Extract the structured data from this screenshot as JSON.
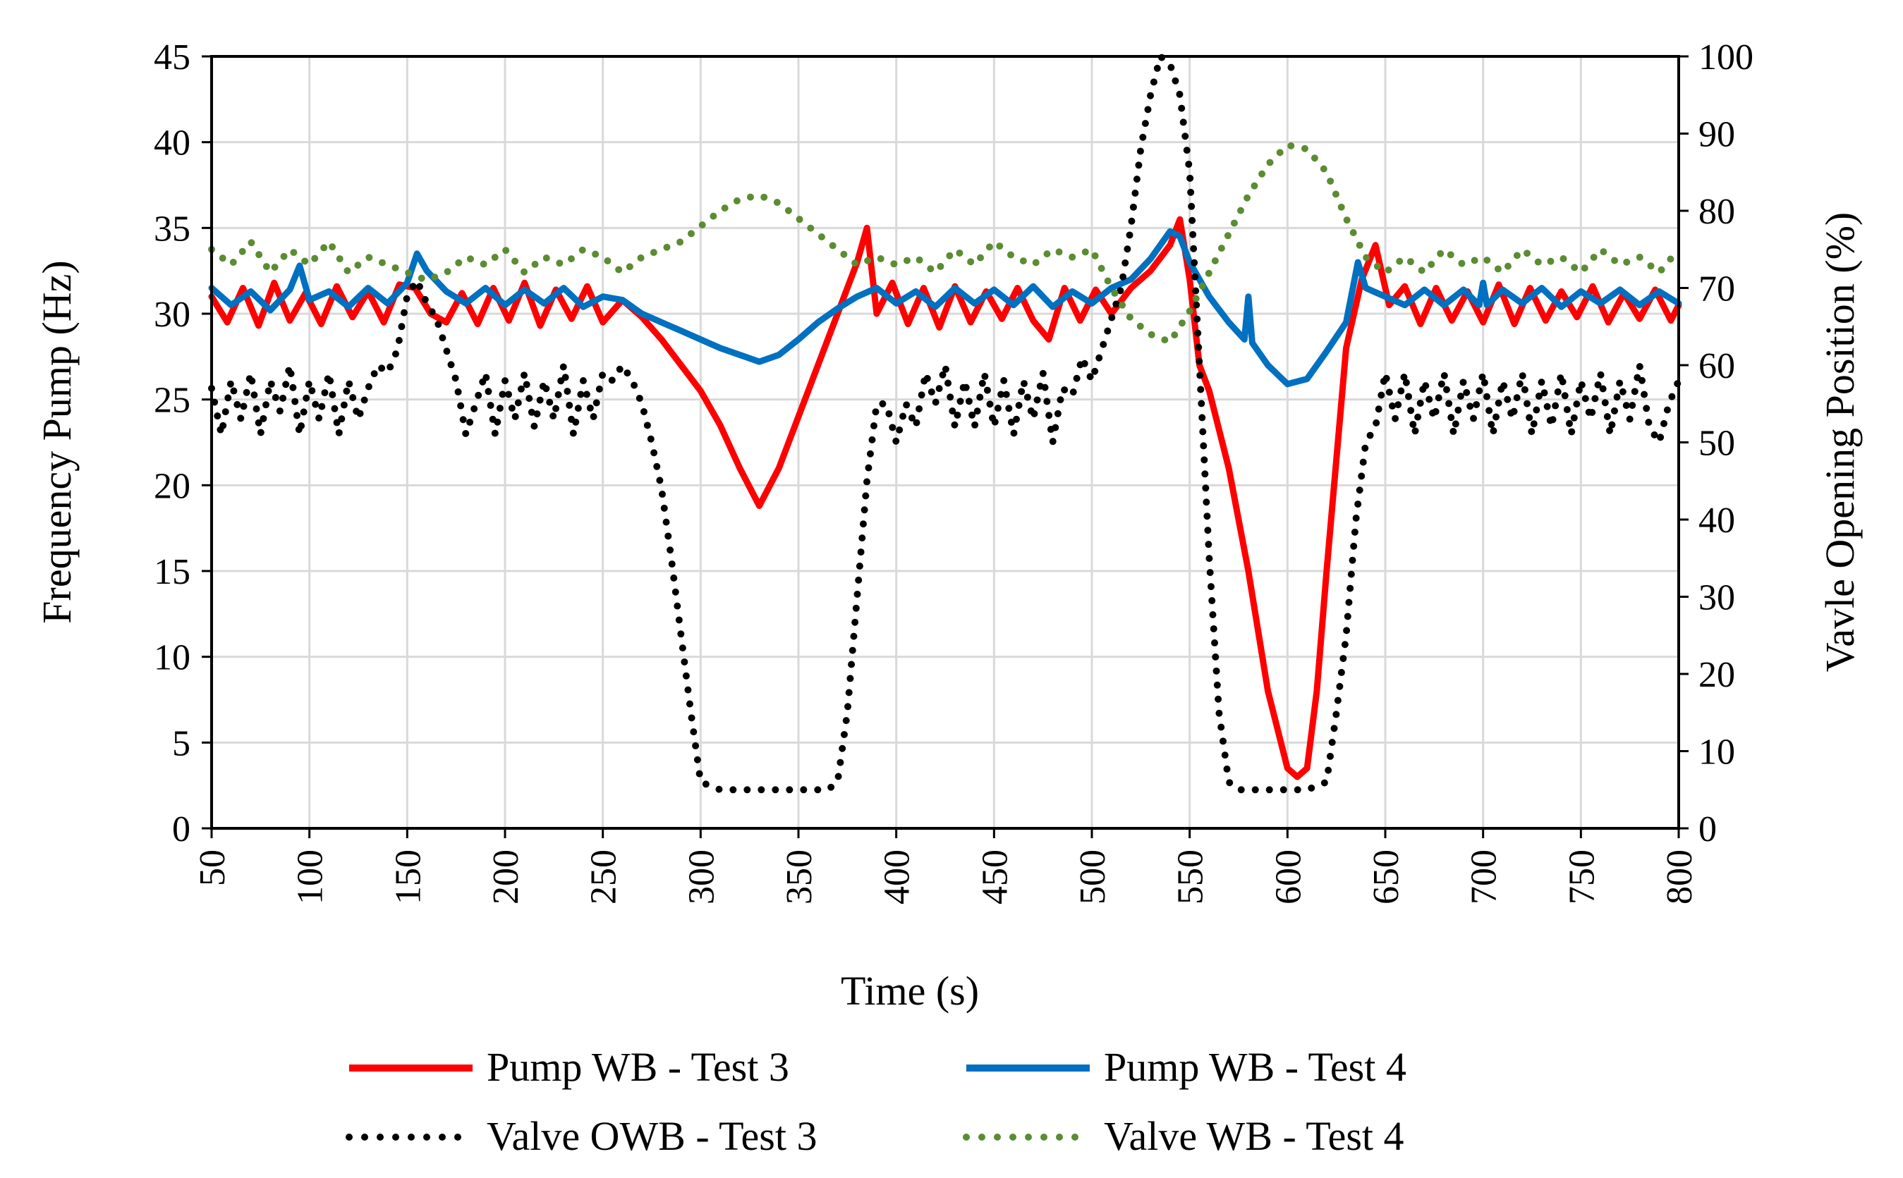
{
  "chart_data": {
    "type": "line",
    "title": "",
    "xlabel": "Time (s)",
    "ylabel": "Frequency Pump (Hz)",
    "y2label": "Vavle Opening Position (%)",
    "xlim": [
      50,
      800
    ],
    "ylim": [
      0,
      45
    ],
    "y2lim": [
      0,
      100
    ],
    "x_ticks": [
      50,
      100,
      150,
      200,
      250,
      300,
      350,
      400,
      450,
      500,
      550,
      600,
      650,
      700,
      750,
      800
    ],
    "y_ticks": [
      0,
      5,
      10,
      15,
      20,
      25,
      30,
      35,
      40,
      45
    ],
    "y2_ticks": [
      0,
      10,
      20,
      30,
      40,
      50,
      60,
      70,
      80,
      90,
      100
    ],
    "grid": true,
    "legend_position": "bottom",
    "series": [
      {
        "name": "Pump WB - Test 3",
        "axis": "left",
        "style": "solid",
        "color": "#ff0000",
        "x": [
          50,
          58,
          66,
          74,
          82,
          90,
          98,
          106,
          114,
          122,
          130,
          138,
          146,
          154,
          162,
          170,
          178,
          186,
          194,
          202,
          210,
          218,
          226,
          234,
          242,
          250,
          260,
          270,
          280,
          290,
          300,
          310,
          320,
          330,
          340,
          350,
          360,
          370,
          380,
          385,
          390,
          398,
          406,
          414,
          422,
          430,
          438,
          446,
          454,
          462,
          470,
          478,
          486,
          494,
          502,
          510,
          520,
          530,
          540,
          545,
          550,
          555,
          560,
          570,
          580,
          590,
          600,
          605,
          610,
          615,
          620,
          630,
          638,
          645,
          652,
          660,
          668,
          676,
          684,
          692,
          700,
          708,
          716,
          724,
          732,
          740,
          748,
          756,
          764,
          772,
          780,
          788,
          796,
          800
        ],
        "values": [
          31,
          29.5,
          31.5,
          29.3,
          31.8,
          29.6,
          31.2,
          29.4,
          31.6,
          29.8,
          31.3,
          29.5,
          31.7,
          31.5,
          30,
          29.5,
          31.2,
          29.4,
          31.5,
          29.6,
          31.8,
          29.3,
          31.4,
          29.7,
          31.6,
          29.5,
          30.8,
          29.8,
          28.5,
          27,
          25.5,
          23.5,
          21,
          18.8,
          21,
          24,
          27,
          30,
          33,
          35,
          30,
          31.8,
          29.4,
          31.5,
          29.2,
          31.6,
          29.5,
          31.3,
          29.7,
          31.5,
          29.6,
          28.5,
          31.5,
          29.6,
          31.4,
          30,
          31.5,
          32.5,
          34,
          35.5,
          32,
          27,
          25.5,
          21,
          15,
          8,
          3.5,
          3,
          3.5,
          8,
          15,
          28,
          32,
          34,
          30.5,
          31.6,
          29.4,
          31.5,
          29.6,
          31.3,
          29.5,
          31.7,
          29.4,
          31.5,
          29.6,
          31.3,
          29.8,
          31.6,
          29.5,
          31.2,
          29.7,
          31.4,
          29.6,
          30.5
        ]
      },
      {
        "name": "Pump WB - Test 4",
        "axis": "left",
        "style": "solid",
        "color": "#0070c0",
        "x": [
          50,
          60,
          70,
          80,
          90,
          95,
          100,
          110,
          120,
          130,
          140,
          150,
          155,
          160,
          170,
          180,
          190,
          200,
          210,
          220,
          230,
          240,
          250,
          260,
          270,
          280,
          290,
          300,
          310,
          320,
          330,
          340,
          350,
          360,
          370,
          380,
          390,
          400,
          410,
          420,
          430,
          440,
          450,
          460,
          470,
          480,
          490,
          500,
          510,
          520,
          530,
          540,
          545,
          550,
          560,
          570,
          578,
          580,
          582,
          590,
          600,
          610,
          620,
          630,
          636,
          640,
          650,
          660,
          670,
          680,
          690,
          698,
          700,
          702,
          710,
          720,
          730,
          740,
          750,
          760,
          770,
          780,
          790,
          800
        ],
        "values": [
          31.5,
          30.5,
          31.3,
          30.2,
          31.4,
          32.8,
          30.8,
          31.3,
          30.4,
          31.5,
          30.6,
          31.8,
          33.5,
          32.5,
          31.3,
          30.6,
          31.5,
          30.5,
          31.4,
          30.6,
          31.5,
          30.4,
          31,
          30.8,
          30,
          29.5,
          29,
          28.5,
          28,
          27.6,
          27.2,
          27.6,
          28.5,
          29.5,
          30.3,
          31,
          31.5,
          30.6,
          31.3,
          30.4,
          31.5,
          30.6,
          31.4,
          30.5,
          31.6,
          30.4,
          31.3,
          30.6,
          31.5,
          32,
          33.2,
          34.8,
          34.5,
          33,
          31,
          29.5,
          28.5,
          31,
          28.3,
          27,
          25.9,
          26.2,
          27.8,
          29.5,
          33,
          31.5,
          31,
          30.5,
          31.4,
          30.5,
          31.4,
          30.5,
          31.8,
          30.5,
          31.4,
          30.6,
          31.5,
          30.4,
          31.3,
          30.6,
          31.4,
          30.5,
          31.3,
          30.6
        ]
      },
      {
        "name": "Valve OWB - Test 3",
        "axis": "right",
        "style": "dotted",
        "color": "#000000",
        "x": [
          50,
          55,
          60,
          65,
          70,
          75,
          80,
          85,
          90,
          95,
          100,
          105,
          110,
          115,
          120,
          125,
          130,
          135,
          140,
          145,
          150,
          155,
          160,
          165,
          170,
          175,
          180,
          185,
          190,
          195,
          200,
          205,
          210,
          215,
          220,
          225,
          230,
          235,
          240,
          245,
          250,
          255,
          260,
          265,
          270,
          275,
          280,
          285,
          290,
          295,
          300,
          310,
          320,
          330,
          340,
          350,
          360,
          365,
          370,
          375,
          380,
          385,
          390,
          395,
          400,
          405,
          410,
          415,
          420,
          425,
          430,
          435,
          440,
          445,
          450,
          455,
          460,
          465,
          470,
          475,
          480,
          485,
          490,
          495,
          500,
          505,
          510,
          515,
          520,
          525,
          530,
          535,
          540,
          545,
          550,
          555,
          560,
          565,
          570,
          575,
          580,
          590,
          600,
          610,
          620,
          625,
          630,
          635,
          640,
          645,
          650,
          655,
          660,
          665,
          670,
          675,
          680,
          685,
          690,
          695,
          700,
          705,
          710,
          715,
          720,
          725,
          730,
          735,
          740,
          745,
          750,
          755,
          760,
          765,
          770,
          775,
          780,
          785,
          790,
          795,
          800
        ],
        "values": [
          57,
          51,
          58,
          53,
          59,
          51,
          58,
          54,
          60,
          51,
          58,
          53,
          59,
          51,
          58,
          53,
          57,
          60,
          59,
          62,
          69,
          71,
          68,
          66,
          62,
          58,
          51,
          55,
          59,
          51,
          58,
          53,
          59,
          52,
          58,
          53,
          60,
          51,
          58,
          53,
          59,
          58,
          60,
          58,
          55,
          50,
          44,
          35,
          25,
          15,
          6,
          5,
          5,
          5,
          5,
          5,
          5,
          5,
          6,
          15,
          30,
          45,
          55,
          55,
          50,
          55,
          52,
          59,
          55,
          60,
          52,
          58,
          52,
          59,
          52,
          58,
          51,
          58,
          53,
          59,
          50,
          57,
          56,
          61,
          58,
          62,
          66,
          70,
          78,
          88,
          95,
          100,
          99,
          95,
          85,
          60,
          35,
          15,
          6,
          5,
          5,
          5,
          5,
          5,
          6,
          15,
          25,
          40,
          50,
          52,
          59,
          53,
          59,
          51,
          58,
          53,
          59,
          51,
          58,
          53,
          59,
          51,
          58,
          53,
          59,
          51,
          58,
          52,
          59,
          51,
          58,
          53,
          59,
          51,
          58,
          53,
          60,
          52,
          50,
          55,
          58
        ]
      },
      {
        "name": "Valve WB - Test 4",
        "axis": "right",
        "style": "dotted",
        "color": "#5b8c32",
        "x": [
          50,
          60,
          70,
          80,
          90,
          100,
          110,
          120,
          130,
          140,
          150,
          160,
          170,
          180,
          190,
          200,
          210,
          220,
          230,
          240,
          250,
          260,
          270,
          280,
          290,
          300,
          310,
          320,
          330,
          340,
          350,
          360,
          370,
          380,
          390,
          400,
          410,
          420,
          430,
          440,
          450,
          460,
          470,
          480,
          490,
          500,
          510,
          520,
          530,
          540,
          550,
          560,
          570,
          580,
          590,
          600,
          610,
          620,
          630,
          640,
          650,
          660,
          670,
          680,
          690,
          700,
          710,
          720,
          730,
          740,
          750,
          760,
          770,
          780,
          790,
          800
        ],
        "values": [
          75,
          73,
          76,
          72,
          75,
          73,
          76,
          72,
          74,
          73,
          72,
          71,
          72,
          74,
          73,
          75,
          72,
          74,
          73,
          75,
          74,
          72,
          74,
          75,
          76,
          78,
          80,
          81.5,
          82,
          81,
          79,
          77,
          75,
          73,
          74,
          73,
          74,
          72,
          75,
          73,
          76,
          74,
          73,
          75,
          74,
          75,
          70,
          66,
          64,
          63,
          67,
          72,
          77,
          82,
          86,
          88.5,
          88,
          85,
          79,
          74,
          72,
          74,
          72,
          75,
          73,
          74,
          72,
          75,
          73,
          74,
          72,
          75,
          73,
          74,
          72,
          75
        ]
      }
    ]
  }
}
